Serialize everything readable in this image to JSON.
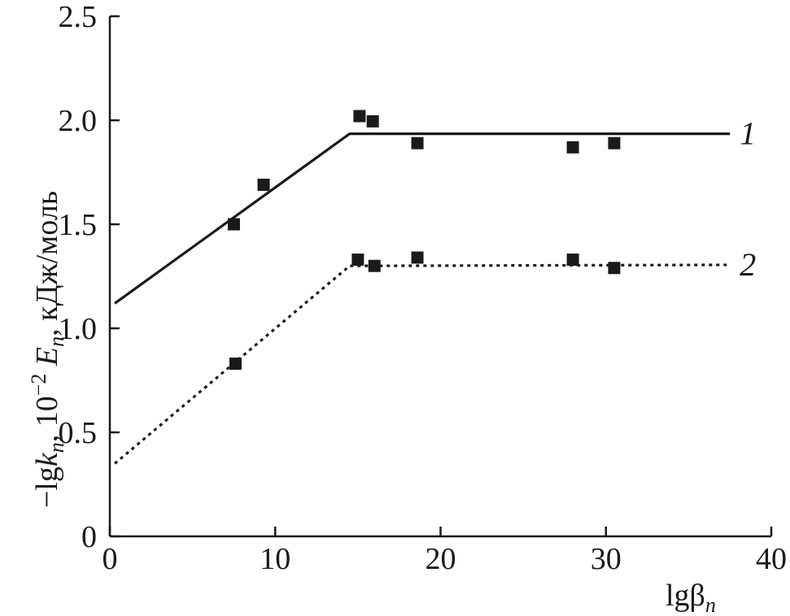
{
  "chart_data": {
    "type": "scatter",
    "xlabel": {
      "main": "lgβ",
      "sub": "n"
    },
    "ylabel": {
      "p1": "−lg",
      "p2": "k",
      "p3": "n",
      "p4": ", 10",
      "p5": "−2",
      "p6": " ",
      "p7": "E",
      "p8": "n",
      "p9": ",  кДж/моль"
    },
    "xlim": [
      0,
      40
    ],
    "ylim": [
      0,
      2.5
    ],
    "x_ticks": [
      0,
      10,
      20,
      30,
      40
    ],
    "x_tick_labels": [
      "0",
      "10",
      "20",
      "30",
      "40"
    ],
    "y_ticks": [
      0,
      0.5,
      1.0,
      1.5,
      2.0,
      2.5
    ],
    "y_tick_labels": [
      "0",
      "0.5",
      "1.0",
      "1.5",
      "2.0",
      "2.5"
    ],
    "grid": false,
    "series": [
      {
        "name": "1",
        "line_style": "solid",
        "points": [
          {
            "x": 7.5,
            "y": 1.5
          },
          {
            "x": 9.3,
            "y": 1.69
          },
          {
            "x": 15.1,
            "y": 2.02
          },
          {
            "x": 15.9,
            "y": 1.995
          },
          {
            "x": 18.6,
            "y": 1.89
          },
          {
            "x": 28.0,
            "y": 1.87
          },
          {
            "x": 30.5,
            "y": 1.89
          }
        ],
        "fit_line": [
          {
            "x": 0.3,
            "y": 1.12
          },
          {
            "x": 14.5,
            "y": 1.935
          },
          {
            "x": 37.5,
            "y": 1.935
          }
        ]
      },
      {
        "name": "2",
        "line_style": "dotted",
        "points": [
          {
            "x": 7.6,
            "y": 0.83
          },
          {
            "x": 15.0,
            "y": 1.33
          },
          {
            "x": 16.0,
            "y": 1.3
          },
          {
            "x": 18.6,
            "y": 1.34
          },
          {
            "x": 28.0,
            "y": 1.33
          },
          {
            "x": 30.5,
            "y": 1.29
          }
        ],
        "fit_line": [
          {
            "x": 0.3,
            "y": 0.35
          },
          {
            "x": 14.5,
            "y": 1.3
          },
          {
            "x": 37.5,
            "y": 1.305
          }
        ]
      }
    ],
    "colors": {
      "ink": "#1a1a1a",
      "background": "#ffffff"
    },
    "marker": "square"
  }
}
